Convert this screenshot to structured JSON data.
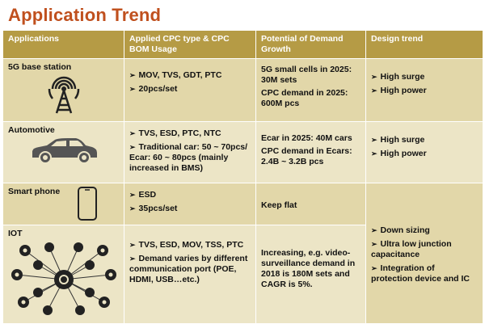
{
  "title": "Application Trend",
  "headers": {
    "applications": "Applications",
    "cpc_type": "Applied CPC type & CPC BOM Usage",
    "demand": "Potential of Demand Growth",
    "design": "Design trend"
  },
  "rows": [
    {
      "app": "5G base station",
      "icon": "cell-tower-icon",
      "cpc": [
        "MOV, TVS, GDT, PTC",
        "20pcs/set"
      ],
      "demand": [
        "5G small cells in 2025: 30M sets",
        "CPC demand in 2025: 600M pcs"
      ],
      "design": [
        "High surge",
        "High power"
      ]
    },
    {
      "app": "Automotive",
      "icon": "car-icon",
      "cpc": [
        "TVS, ESD, PTC, NTC",
        "Traditional car: 50 ~ 70pcs/  Ecar: 60 ~ 80pcs (mainly increased in BMS)"
      ],
      "demand": [
        "Ecar in 2025: 40M cars",
        "CPC demand in Ecars: 2.4B ~ 3.2B pcs"
      ],
      "design": [
        "High surge",
        "High power"
      ]
    },
    {
      "app": "Smart phone",
      "icon": "smartphone-icon",
      "cpc": [
        "ESD",
        "35pcs/set"
      ],
      "demand": [
        "Keep flat"
      ]
    },
    {
      "app": "IOT",
      "icon": "iot-network-icon",
      "cpc": [
        "TVS, ESD, MOV, TSS, PTC",
        "Demand varies by different communication port (POE, HDMI, USB…etc.)"
      ],
      "demand": [
        "Increasing, e.g. video-surveillance demand in 2018 is 180M sets and CAGR is 5%."
      ]
    }
  ],
  "shared_design": [
    "Down sizing",
    "Ultra low junction capacitance",
    "Integration of protection device and IC"
  ]
}
